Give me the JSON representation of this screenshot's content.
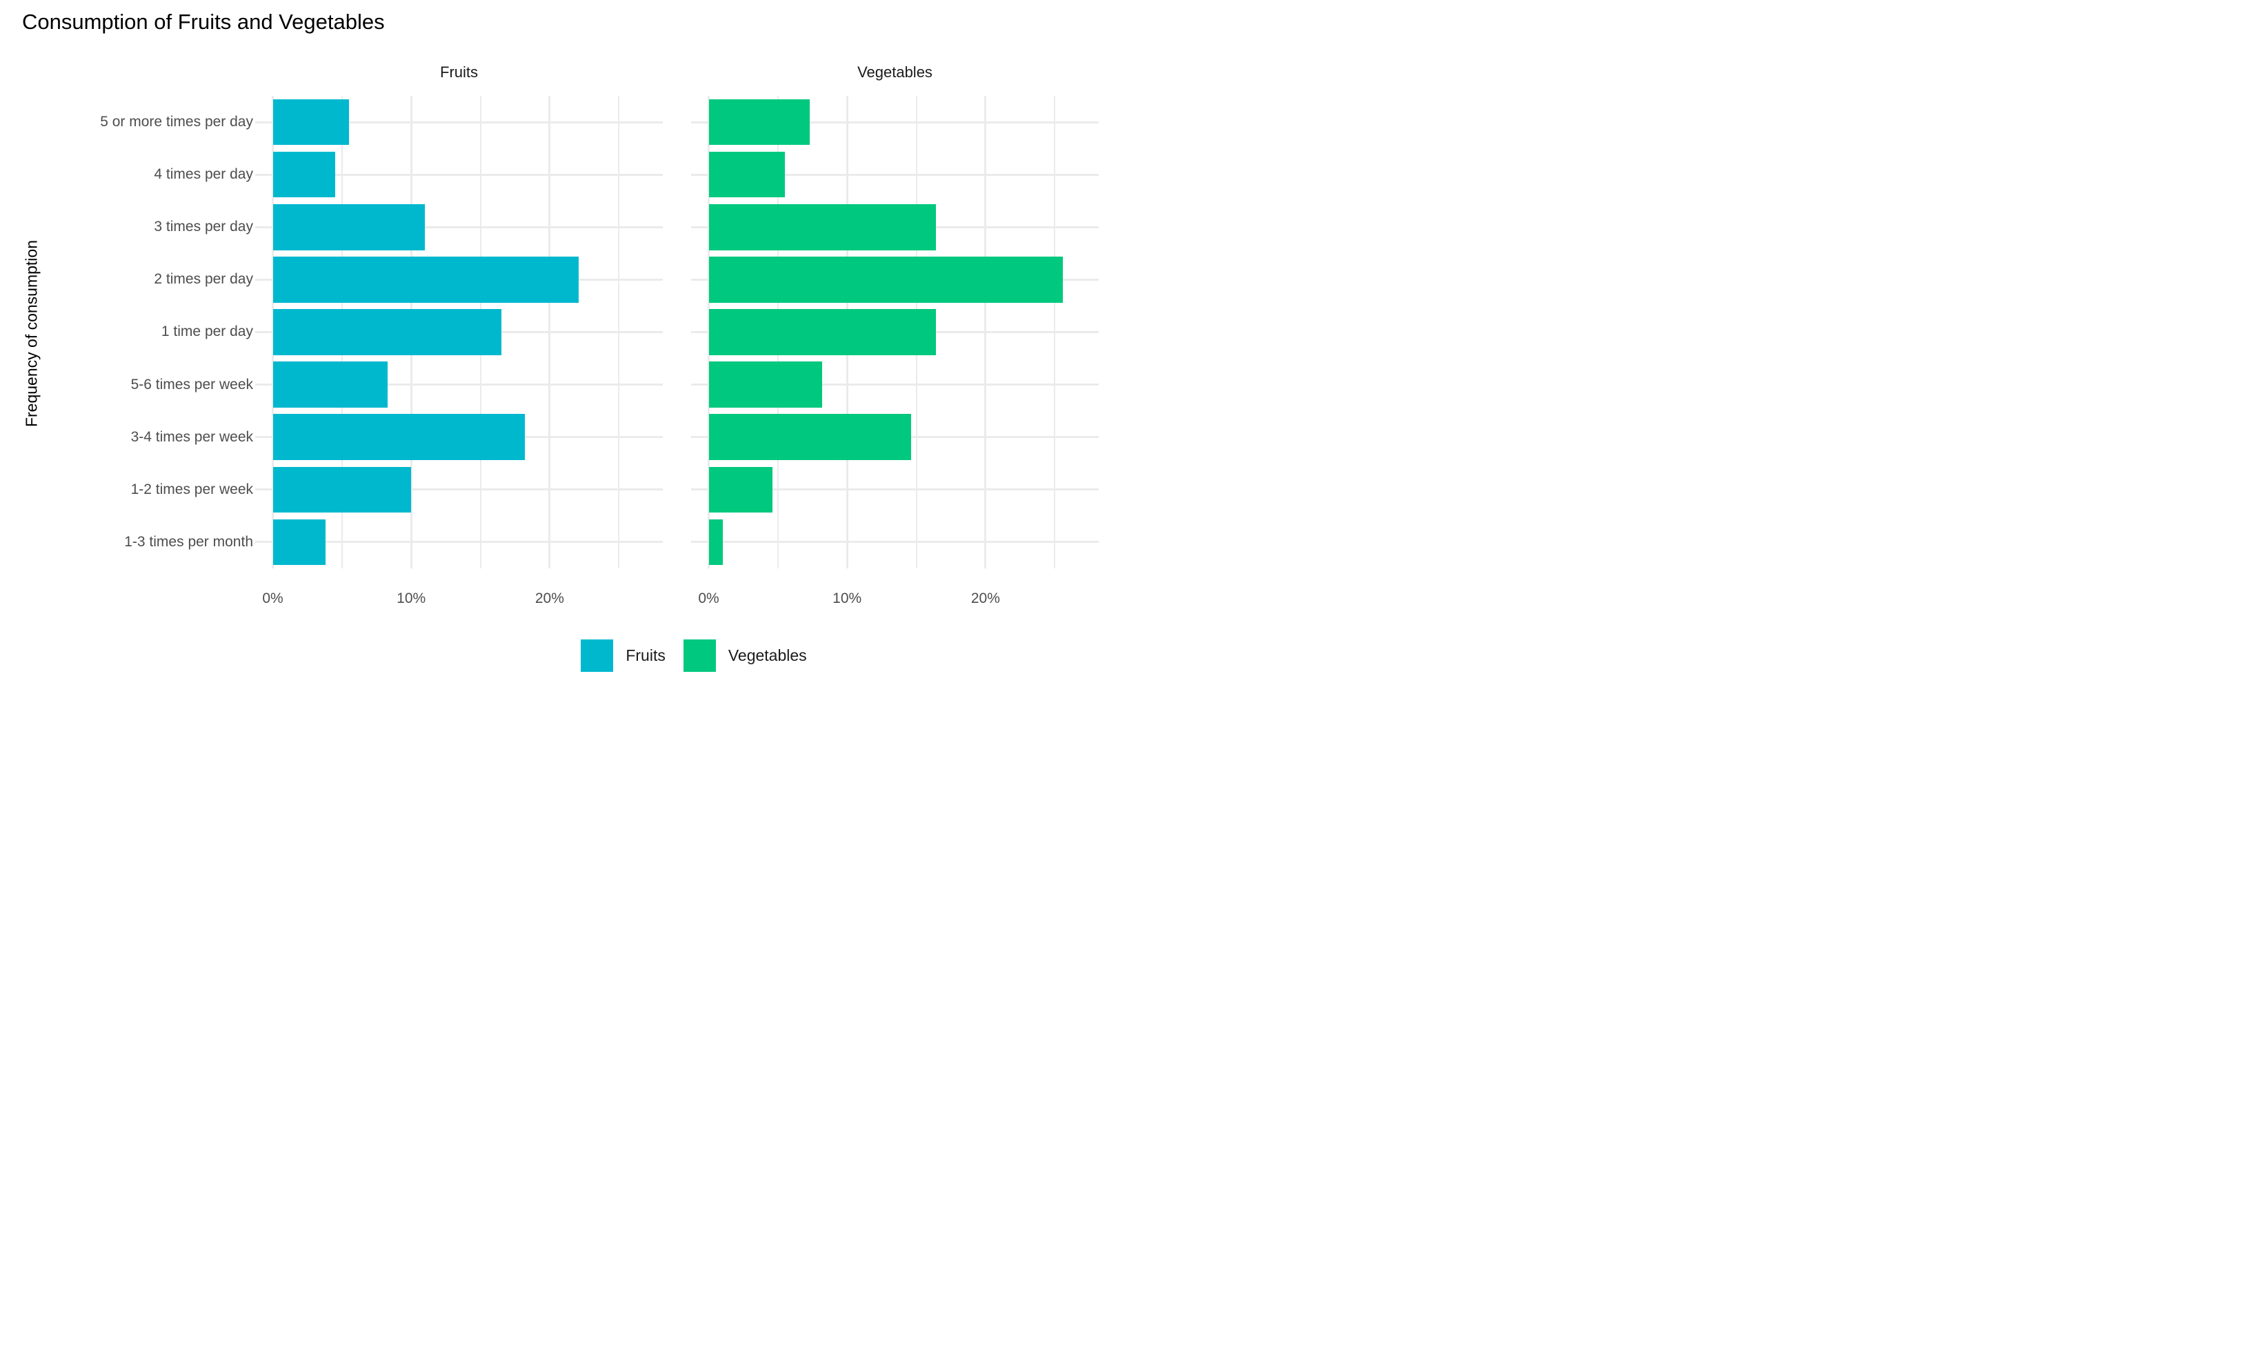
{
  "title": "Consumption of Fruits and Vegetables",
  "y_axis_title": "Frequency of consumption",
  "legend": {
    "position": "bottom",
    "items": [
      {
        "label": "Fruits",
        "color": "#00B8CE"
      },
      {
        "label": "Vegetables",
        "color": "#00C87E"
      }
    ]
  },
  "chart_data": {
    "type": "bar",
    "orientation": "horizontal",
    "facet_layout": "columns",
    "title": "Consumption of Fruits and Vegetables",
    "xlabel": "",
    "ylabel": "Frequency of consumption",
    "categories": [
      "5 or more times per day",
      "4 times per day",
      "3 times per day",
      "2 times per day",
      "1 time per day",
      "5-6 times per week",
      "3-4 times per week",
      "1-2 times per week",
      "1-3 times per month"
    ],
    "series": [
      {
        "name": "Fruits",
        "color": "#00B8CE",
        "values": [
          5.5,
          4.5,
          11.0,
          22.1,
          16.5,
          8.3,
          18.2,
          10.0,
          3.8
        ]
      },
      {
        "name": "Vegetables",
        "color": "#00C87E",
        "values": [
          7.3,
          5.5,
          16.4,
          25.6,
          16.4,
          8.2,
          14.6,
          4.6,
          1.0
        ]
      }
    ],
    "value_unit": "%",
    "x_ticks": [
      {
        "value": 0,
        "label": "0%"
      },
      {
        "value": 10,
        "label": "10%"
      },
      {
        "value": 20,
        "label": "20%"
      }
    ],
    "x_minor_gridlines": [
      5,
      15,
      25
    ],
    "x_range": [
      -1.3,
      28.2
    ],
    "grid": true,
    "grid_color": "#EBEBEB",
    "axis_text_color": "#4D4D4D",
    "background_color": "#FFFFFF"
  }
}
